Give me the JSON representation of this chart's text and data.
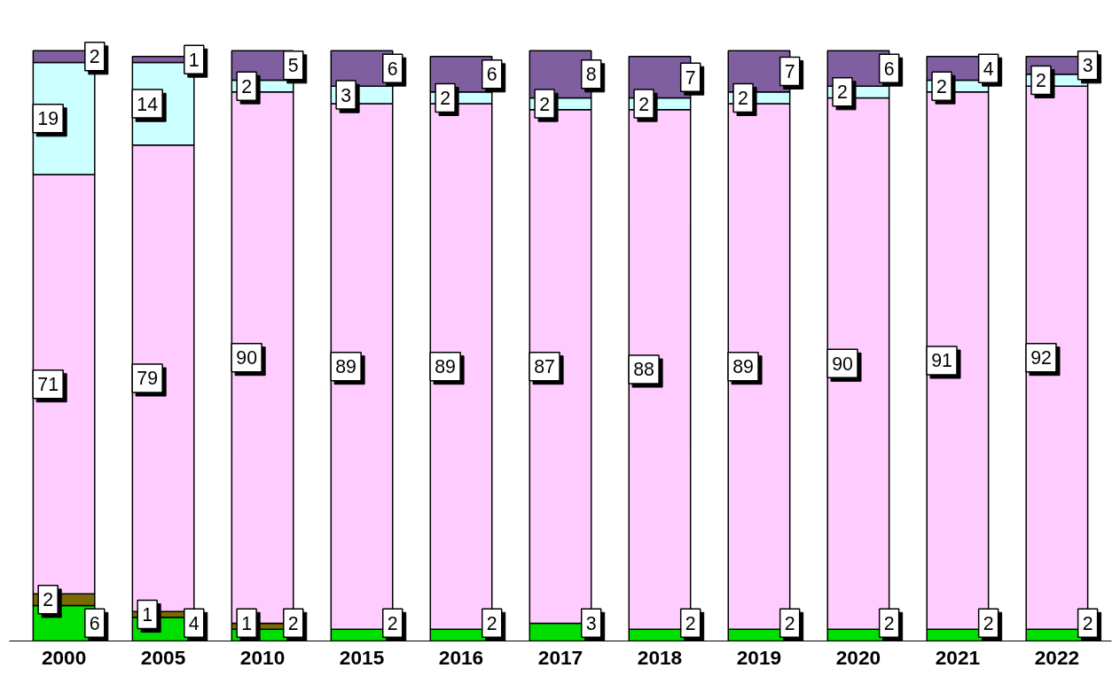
{
  "chart_data": {
    "type": "bar",
    "stacked": true,
    "data_labels": true,
    "grid": false,
    "categories": [
      "2000",
      "2005",
      "2010",
      "2015",
      "2016",
      "2017",
      "2018",
      "2019",
      "2020",
      "2021",
      "2022"
    ],
    "series": [
      {
        "color": "#00e000",
        "values": [
          6,
          4,
          2,
          2,
          2,
          3,
          2,
          2,
          2,
          2,
          2
        ]
      },
      {
        "color": "#7a6a00",
        "values": [
          2,
          1,
          1,
          null,
          null,
          null,
          null,
          null,
          null,
          null,
          null
        ]
      },
      {
        "color": "#ffccff",
        "values": [
          71,
          79,
          90,
          89,
          89,
          87,
          88,
          89,
          90,
          91,
          92
        ]
      },
      {
        "color": "#ccffff",
        "values": [
          19,
          14,
          2,
          3,
          2,
          2,
          2,
          2,
          2,
          2,
          2
        ]
      },
      {
        "color": "#7f5f9f",
        "values": [
          2,
          1,
          5,
          6,
          6,
          8,
          7,
          7,
          6,
          4,
          3
        ]
      }
    ]
  }
}
